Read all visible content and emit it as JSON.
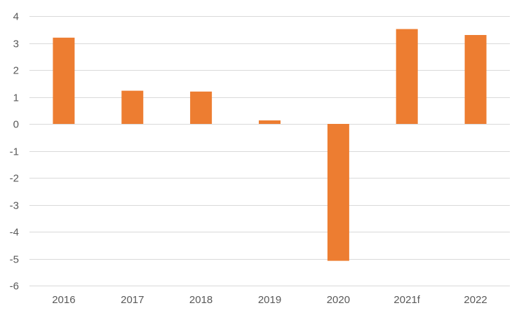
{
  "chart_data": {
    "type": "bar",
    "title": "",
    "xlabel": "",
    "ylabel": "",
    "categories": [
      "2016",
      "2017",
      "2018",
      "2019",
      "2020",
      "2021f",
      "2022"
    ],
    "values": [
      3.2,
      1.23,
      1.2,
      0.13,
      -5.08,
      3.52,
      3.3
    ],
    "ylim": [
      -6,
      4
    ],
    "yticks": [
      4,
      3,
      2,
      1,
      0,
      -1,
      -2,
      -3,
      -4,
      -5,
      -6
    ],
    "ytick_labels": [
      "4",
      "3",
      "2",
      "1",
      "0",
      "-1",
      "-2",
      "-3",
      "-4",
      "-5",
      "-6"
    ],
    "grid": true,
    "legend": "none",
    "bar_color": "#ed7d31",
    "grid_color": "#d9d9d9",
    "label_color": "#595959"
  }
}
